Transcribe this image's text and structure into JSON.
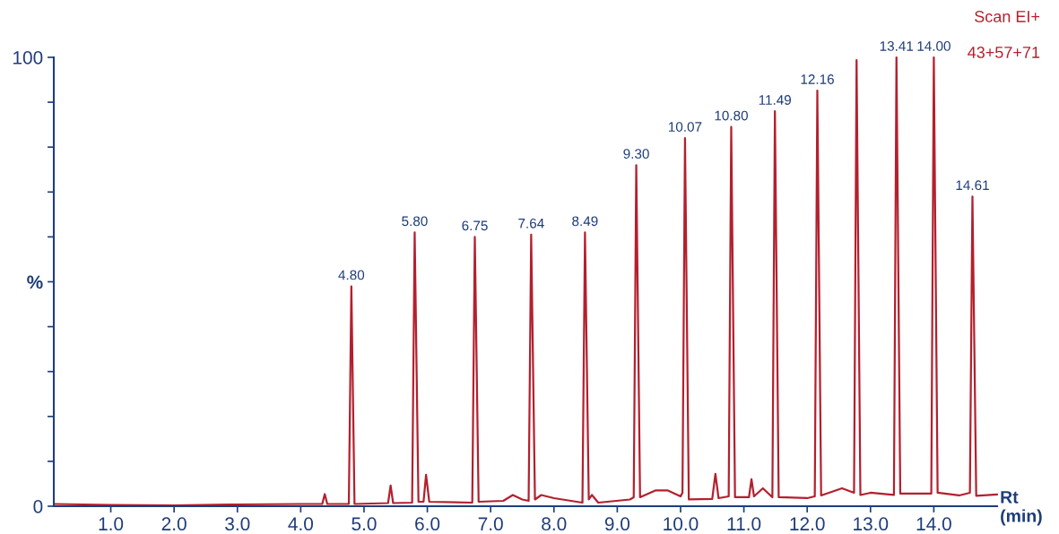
{
  "chart_data": {
    "type": "line",
    "x": [
      0.1,
      1.0,
      2.0,
      3.0,
      4.0,
      4.34,
      4.38,
      4.42,
      4.76,
      4.8,
      4.85,
      5.38,
      5.42,
      5.46,
      5.76,
      5.8,
      5.86,
      5.94,
      5.98,
      6.03,
      6.71,
      6.75,
      6.81,
      7.2,
      7.35,
      7.5,
      7.6,
      7.64,
      7.7,
      7.8,
      8.0,
      8.45,
      8.49,
      8.55,
      8.6,
      8.7,
      9.2,
      9.26,
      9.3,
      9.36,
      9.6,
      9.8,
      10.0,
      10.03,
      10.07,
      10.13,
      10.5,
      10.55,
      10.6,
      10.76,
      10.8,
      10.86,
      11.08,
      11.12,
      11.16,
      11.3,
      11.45,
      11.49,
      11.55,
      12.0,
      12.12,
      12.16,
      12.22,
      12.55,
      12.74,
      12.78,
      12.84,
      13.0,
      13.37,
      13.41,
      13.47,
      13.96,
      14.0,
      14.06,
      14.4,
      14.57,
      14.61,
      14.67,
      15.0
    ],
    "series": [
      {
        "color": "#b3202e",
        "values": [
          0.5,
          0.3,
          0.2,
          0.4,
          0.5,
          0.5,
          2.7,
          0.5,
          0.5,
          49,
          0.5,
          0.7,
          4.6,
          0.7,
          0.8,
          61,
          1.0,
          1.0,
          7,
          1.0,
          0.8,
          60,
          1.0,
          1.2,
          2.5,
          1.5,
          1.2,
          60.5,
          1.5,
          2.5,
          1.8,
          0.8,
          61,
          1.5,
          2.5,
          0.8,
          1.5,
          2.0,
          76,
          2.0,
          3.5,
          3.5,
          2.2,
          3,
          82,
          1.5,
          1.6,
          7.2,
          1.8,
          2.2,
          84.5,
          2.0,
          2.0,
          6,
          2.2,
          4,
          2.0,
          88,
          2.0,
          1.8,
          2.2,
          92.6,
          2.4,
          4,
          3,
          99.4,
          2.5,
          3,
          2.5,
          100,
          2.8,
          2.8,
          100,
          3,
          2.4,
          3,
          69,
          2.3,
          2.6
        ]
      }
    ],
    "xlim": [
      0.1,
      15.0
    ],
    "xticks": [
      {
        "value": 1.0,
        "label": "1.0"
      },
      {
        "value": 2.0,
        "label": "2.0"
      },
      {
        "value": 3.0,
        "label": "3.0"
      },
      {
        "value": 4.0,
        "label": "4.0"
      },
      {
        "value": 5.0,
        "label": "5.0"
      },
      {
        "value": 6.0,
        "label": "6.0"
      },
      {
        "value": 7.0,
        "label": "7.0"
      },
      {
        "value": 8.0,
        "label": "8.0"
      },
      {
        "value": 9.0,
        "label": "9.0"
      },
      {
        "value": 10.0,
        "label": "10.0"
      },
      {
        "value": 11.0,
        "label": "11.0"
      },
      {
        "value": 12.0,
        "label": "12.0"
      },
      {
        "value": 13.0,
        "label": "13.0"
      },
      {
        "value": 14.0,
        "label": "14.0"
      }
    ],
    "ylim": [
      0,
      100
    ],
    "yticks": [
      0,
      {
        "value": 10,
        "label": null
      },
      {
        "value": 20,
        "label": null
      },
      {
        "value": 30,
        "label": null
      },
      {
        "value": 40,
        "label": null
      },
      {
        "value": 50,
        "label": "%"
      },
      {
        "value": 60,
        "label": null
      },
      {
        "value": 70,
        "label": null
      },
      {
        "value": 80,
        "label": null
      },
      {
        "value": 90,
        "label": null
      },
      100
    ],
    "xlabel": "Rt\n(min)",
    "grid": false,
    "marker": "none",
    "line_style": "solid",
    "annotations": [
      {
        "text": "4.80",
        "x": 4.8,
        "y": 49
      },
      {
        "text": "5.80",
        "x": 5.8,
        "y": 61
      },
      {
        "text": "6.75",
        "x": 6.75,
        "y": 60
      },
      {
        "text": "7.64",
        "x": 7.64,
        "y": 60.5
      },
      {
        "text": "8.49",
        "x": 8.49,
        "y": 61
      },
      {
        "text": "9.30",
        "x": 9.3,
        "y": 76
      },
      {
        "text": "10.07",
        "x": 10.07,
        "y": 82
      },
      {
        "text": "10.80",
        "x": 10.8,
        "y": 84.5
      },
      {
        "text": "11.49",
        "x": 11.49,
        "y": 88
      },
      {
        "text": "12.16",
        "x": 12.16,
        "y": 92.6
      },
      {
        "text": "13.41",
        "x": 13.41,
        "y": 100
      },
      {
        "text": "14.00",
        "x": 14.0,
        "y": 100
      },
      {
        "text": "14.61",
        "x": 14.61,
        "y": 69
      },
      "Scan EI+",
      "43+57+71"
    ]
  }
}
